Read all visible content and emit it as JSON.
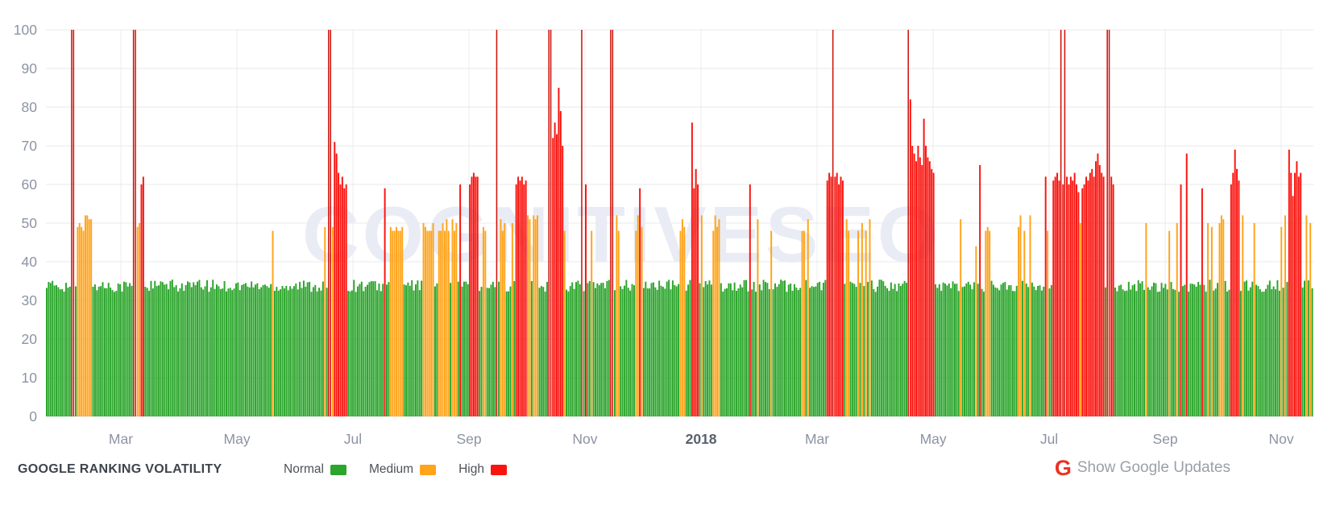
{
  "watermark": "COGNITIVESEO",
  "footer": {
    "title": "GOOGLE RANKING VOLATILITY",
    "legend": [
      {
        "label": "Normal",
        "level": "normal"
      },
      {
        "label": "Medium",
        "level": "medium"
      },
      {
        "label": "High",
        "level": "high"
      }
    ],
    "google_updates": {
      "icon": "G",
      "label": "Show Google Updates"
    }
  },
  "colors": {
    "background": "#ffffff",
    "grid_h": "#e8e8e8",
    "grid_v": "#ededed",
    "baseline": "#dfe3e8",
    "axis_text": "#8c93a3",
    "year_text": "#59606c",
    "watermark": "#e9ecf4",
    "title_text": "#3e444c",
    "legend_text": "#4d5258",
    "footer_gray": "#9ba0a8",
    "g_icon_red": "#ea3323"
  },
  "chart_data": {
    "type": "bar",
    "title": "GOOGLE RANKING VOLATILITY",
    "ylim": [
      0,
      100
    ],
    "yticks": [
      0,
      10,
      20,
      30,
      40,
      50,
      60,
      70,
      80,
      90,
      100
    ],
    "grid": true,
    "legend_position": "bottom",
    "x_months": [
      {
        "label": "Mar",
        "f": 0.0591
      },
      {
        "label": "May",
        "f": 0.1507
      },
      {
        "label": "Jul",
        "f": 0.2422
      },
      {
        "label": "Sep",
        "f": 0.3338
      },
      {
        "label": "Nov",
        "f": 0.4253
      },
      {
        "label": "2018",
        "f": 0.5169
      },
      {
        "label": "Mar",
        "f": 0.6084
      },
      {
        "label": "May",
        "f": 0.7
      },
      {
        "label": "Jul",
        "f": 0.7915
      },
      {
        "label": "Sep",
        "f": 0.8831
      },
      {
        "label": "Nov",
        "f": 0.9746
      }
    ],
    "num_bars": 656,
    "baseline": {
      "level": "normal",
      "value_min": 32.2,
      "value_max": 35.4
    },
    "levels": {
      "normal": {
        "label": "Normal",
        "color": "#2ba52b"
      },
      "medium": {
        "label": "Medium",
        "color": "#ffa41b"
      },
      "high": {
        "label": "High",
        "color": "#fa140f"
      }
    },
    "high_spike_color": "#cf0e06",
    "events": [
      [
        13,
        100,
        "h"
      ],
      [
        14,
        100,
        "h"
      ],
      [
        16,
        49,
        "m"
      ],
      [
        17,
        50,
        "m"
      ],
      [
        18,
        49,
        "m"
      ],
      [
        19,
        48,
        "m"
      ],
      [
        20,
        52,
        "m"
      ],
      [
        21,
        52,
        "m"
      ],
      [
        22,
        51,
        "m"
      ],
      [
        23,
        51,
        "m"
      ],
      [
        45,
        100,
        "h"
      ],
      [
        46,
        100,
        "h"
      ],
      [
        47,
        49,
        "m"
      ],
      [
        48,
        50,
        "m"
      ],
      [
        49,
        60,
        "h"
      ],
      [
        50,
        62,
        "h"
      ],
      [
        117,
        48,
        "m"
      ],
      [
        144,
        49,
        "m"
      ],
      [
        146,
        100,
        "h"
      ],
      [
        147,
        100,
        "h"
      ],
      [
        148,
        49,
        "m"
      ],
      [
        149,
        71,
        "h"
      ],
      [
        150,
        68,
        "h"
      ],
      [
        151,
        63,
        "h"
      ],
      [
        152,
        60,
        "h"
      ],
      [
        153,
        62,
        "h"
      ],
      [
        154,
        59,
        "h"
      ],
      [
        155,
        60,
        "h"
      ],
      [
        175,
        59,
        "h"
      ],
      [
        178,
        49,
        "m"
      ],
      [
        179,
        48,
        "m"
      ],
      [
        180,
        48,
        "m"
      ],
      [
        181,
        49,
        "m"
      ],
      [
        182,
        48,
        "m"
      ],
      [
        183,
        48,
        "m"
      ],
      [
        184,
        49,
        "m"
      ],
      [
        195,
        50,
        "m"
      ],
      [
        196,
        49,
        "m"
      ],
      [
        197,
        48,
        "m"
      ],
      [
        198,
        48,
        "m"
      ],
      [
        199,
        48,
        "m"
      ],
      [
        200,
        50,
        "m"
      ],
      [
        203,
        48,
        "m"
      ],
      [
        204,
        48,
        "m"
      ],
      [
        205,
        50,
        "m"
      ],
      [
        206,
        48,
        "m"
      ],
      [
        207,
        51,
        "m"
      ],
      [
        208,
        48,
        "m"
      ],
      [
        210,
        51,
        "m"
      ],
      [
        211,
        48,
        "m"
      ],
      [
        212,
        50,
        "m"
      ],
      [
        214,
        60,
        "h"
      ],
      [
        219,
        60,
        "h"
      ],
      [
        220,
        62,
        "h"
      ],
      [
        221,
        63,
        "h"
      ],
      [
        222,
        62,
        "h"
      ],
      [
        223,
        62,
        "h"
      ],
      [
        226,
        49,
        "m"
      ],
      [
        227,
        48,
        "m"
      ],
      [
        233,
        100,
        "h"
      ],
      [
        235,
        51,
        "m"
      ],
      [
        236,
        48,
        "m"
      ],
      [
        237,
        50,
        "m"
      ],
      [
        241,
        50,
        "m"
      ],
      [
        243,
        60,
        "h"
      ],
      [
        244,
        62,
        "h"
      ],
      [
        245,
        61,
        "h"
      ],
      [
        246,
        62,
        "h"
      ],
      [
        247,
        60,
        "h"
      ],
      [
        248,
        61,
        "h"
      ],
      [
        249,
        52,
        "m"
      ],
      [
        250,
        51,
        "m"
      ],
      [
        252,
        52,
        "m"
      ],
      [
        253,
        51,
        "m"
      ],
      [
        254,
        52,
        "m"
      ],
      [
        260,
        100,
        "h"
      ],
      [
        261,
        100,
        "h"
      ],
      [
        262,
        72,
        "h"
      ],
      [
        263,
        76,
        "h"
      ],
      [
        264,
        73,
        "h"
      ],
      [
        265,
        85,
        "h"
      ],
      [
        266,
        79,
        "h"
      ],
      [
        267,
        70,
        "h"
      ],
      [
        268,
        48,
        "m"
      ],
      [
        277,
        100,
        "h"
      ],
      [
        279,
        60,
        "h"
      ],
      [
        282,
        48,
        "m"
      ],
      [
        292,
        100,
        "h"
      ],
      [
        293,
        100,
        "h"
      ],
      [
        295,
        52,
        "m"
      ],
      [
        296,
        48,
        "m"
      ],
      [
        305,
        48,
        "m"
      ],
      [
        306,
        52,
        "m"
      ],
      [
        307,
        59,
        "h"
      ],
      [
        308,
        49,
        "m"
      ],
      [
        328,
        48,
        "m"
      ],
      [
        329,
        51,
        "m"
      ],
      [
        330,
        49,
        "m"
      ],
      [
        334,
        76,
        "h"
      ],
      [
        335,
        59,
        "h"
      ],
      [
        336,
        64,
        "h"
      ],
      [
        337,
        60,
        "h"
      ],
      [
        339,
        52,
        "m"
      ],
      [
        345,
        48,
        "m"
      ],
      [
        346,
        52,
        "m"
      ],
      [
        347,
        49,
        "m"
      ],
      [
        348,
        51,
        "m"
      ],
      [
        364,
        60,
        "h"
      ],
      [
        368,
        51,
        "m"
      ],
      [
        375,
        48,
        "m"
      ],
      [
        391,
        48,
        "m"
      ],
      [
        392,
        48,
        "m"
      ],
      [
        394,
        51,
        "m"
      ],
      [
        404,
        61,
        "h"
      ],
      [
        405,
        63,
        "h"
      ],
      [
        406,
        62,
        "h"
      ],
      [
        407,
        100,
        "h"
      ],
      [
        408,
        62,
        "h"
      ],
      [
        409,
        63,
        "h"
      ],
      [
        410,
        60,
        "h"
      ],
      [
        411,
        62,
        "h"
      ],
      [
        412,
        61,
        "h"
      ],
      [
        414,
        51,
        "m"
      ],
      [
        415,
        48,
        "m"
      ],
      [
        420,
        48,
        "m"
      ],
      [
        422,
        50,
        "m"
      ],
      [
        424,
        48,
        "m"
      ],
      [
        426,
        51,
        "m"
      ],
      [
        446,
        100,
        "h"
      ],
      [
        447,
        82,
        "h"
      ],
      [
        448,
        70,
        "h"
      ],
      [
        449,
        68,
        "h"
      ],
      [
        450,
        66,
        "h"
      ],
      [
        451,
        70,
        "h"
      ],
      [
        452,
        67,
        "h"
      ],
      [
        453,
        65,
        "h"
      ],
      [
        454,
        77,
        "h"
      ],
      [
        455,
        70,
        "h"
      ],
      [
        456,
        67,
        "h"
      ],
      [
        457,
        66,
        "h"
      ],
      [
        458,
        64,
        "h"
      ],
      [
        459,
        63,
        "h"
      ],
      [
        473,
        51,
        "m"
      ],
      [
        481,
        44,
        "m"
      ],
      [
        483,
        65,
        "h"
      ],
      [
        486,
        48,
        "m"
      ],
      [
        487,
        49,
        "m"
      ],
      [
        488,
        48,
        "m"
      ],
      [
        503,
        49,
        "m"
      ],
      [
        504,
        52,
        "m"
      ],
      [
        506,
        48,
        "m"
      ],
      [
        509,
        52,
        "m"
      ],
      [
        517,
        62,
        "h"
      ],
      [
        518,
        48,
        "m"
      ],
      [
        521,
        61,
        "h"
      ],
      [
        522,
        62,
        "h"
      ],
      [
        523,
        63,
        "h"
      ],
      [
        524,
        61,
        "h"
      ],
      [
        525,
        100,
        "h"
      ],
      [
        526,
        60,
        "h"
      ],
      [
        527,
        100,
        "h"
      ],
      [
        528,
        62,
        "h"
      ],
      [
        529,
        60,
        "h"
      ],
      [
        530,
        62,
        "h"
      ],
      [
        531,
        61,
        "h"
      ],
      [
        532,
        63,
        "h"
      ],
      [
        533,
        60,
        "h"
      ],
      [
        534,
        58,
        "h"
      ],
      [
        535,
        50,
        "m"
      ],
      [
        536,
        59,
        "h"
      ],
      [
        537,
        60,
        "h"
      ],
      [
        538,
        62,
        "h"
      ],
      [
        539,
        61,
        "h"
      ],
      [
        540,
        63,
        "h"
      ],
      [
        541,
        64,
        "h"
      ],
      [
        542,
        62,
        "h"
      ],
      [
        543,
        66,
        "h"
      ],
      [
        544,
        68,
        "h"
      ],
      [
        545,
        65,
        "h"
      ],
      [
        546,
        63,
        "h"
      ],
      [
        547,
        62,
        "h"
      ],
      [
        549,
        100,
        "h"
      ],
      [
        550,
        100,
        "h"
      ],
      [
        551,
        62,
        "h"
      ],
      [
        552,
        60,
        "h"
      ],
      [
        569,
        50,
        "m"
      ],
      [
        581,
        48,
        "m"
      ],
      [
        585,
        50,
        "m"
      ],
      [
        587,
        60,
        "h"
      ],
      [
        590,
        68,
        "h"
      ],
      [
        598,
        59,
        "h"
      ],
      [
        601,
        50,
        "m"
      ],
      [
        603,
        49,
        "m"
      ],
      [
        607,
        50,
        "m"
      ],
      [
        608,
        52,
        "m"
      ],
      [
        609,
        51,
        "m"
      ],
      [
        613,
        60,
        "h"
      ],
      [
        614,
        63,
        "h"
      ],
      [
        615,
        69,
        "h"
      ],
      [
        616,
        64,
        "h"
      ],
      [
        617,
        61,
        "h"
      ],
      [
        619,
        52,
        "m"
      ],
      [
        625,
        50,
        "m"
      ],
      [
        639,
        49,
        "m"
      ],
      [
        641,
        52,
        "m"
      ],
      [
        643,
        69,
        "h"
      ],
      [
        644,
        63,
        "h"
      ],
      [
        645,
        57,
        "h"
      ],
      [
        646,
        63,
        "h"
      ],
      [
        647,
        66,
        "h"
      ],
      [
        648,
        62,
        "h"
      ],
      [
        649,
        63,
        "h"
      ],
      [
        652,
        52,
        "m"
      ],
      [
        654,
        50,
        "m"
      ]
    ]
  }
}
